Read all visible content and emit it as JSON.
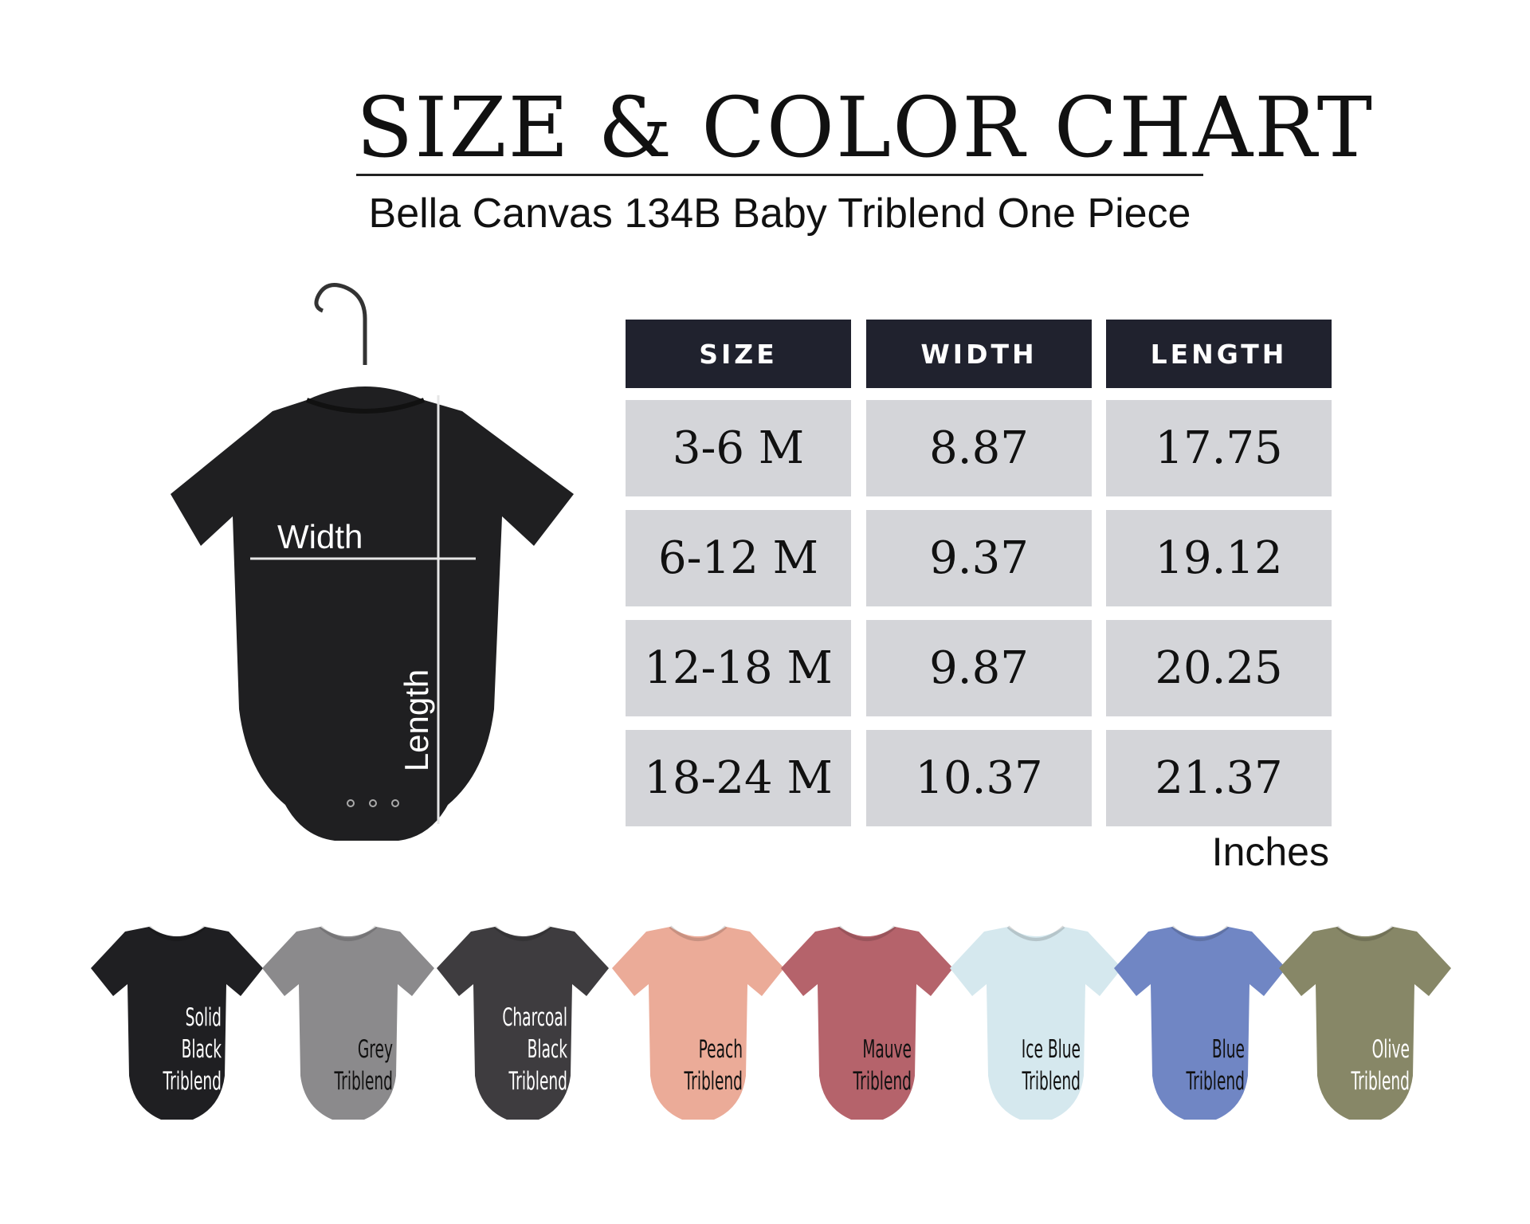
{
  "header": {
    "title": "SIZE & COLOR CHART",
    "subtitle": "Bella Canvas 134B Baby Triblend One Piece"
  },
  "diagram": {
    "width_label": "Width",
    "length_label": "Length",
    "garment_color": "#1f1f21"
  },
  "size_table": {
    "columns": [
      "SIZE",
      "WIDTH",
      "LENGTH"
    ],
    "rows": [
      [
        "3-6 M",
        "8.87",
        "17.75"
      ],
      [
        "6-12 M",
        "9.37",
        "19.12"
      ],
      [
        "12-18 M",
        "9.87",
        "20.25"
      ],
      [
        "18-24 M",
        "10.37",
        "21.37"
      ]
    ],
    "units": "Inches",
    "header_color": "#20222e",
    "cell_color": "#d4d5d9"
  },
  "colors": [
    {
      "lines": [
        "Solid",
        "Black",
        "Triblend"
      ],
      "hex": "#1f1f22",
      "text": "#ffffff"
    },
    {
      "lines": [
        "Grey",
        "Triblend"
      ],
      "hex": "#8b8a8c",
      "text": "#111111"
    },
    {
      "lines": [
        "Charcoal",
        "Black",
        "Triblend"
      ],
      "hex": "#3e3c3f",
      "text": "#ffffff"
    },
    {
      "lines": [
        "Peach",
        "Triblend"
      ],
      "hex": "#ebab98",
      "text": "#111111"
    },
    {
      "lines": [
        "Mauve",
        "Triblend"
      ],
      "hex": "#b5636b",
      "text": "#111111"
    },
    {
      "lines": [
        "Ice Blue",
        "Triblend"
      ],
      "hex": "#d5e8ee",
      "text": "#111111"
    },
    {
      "lines": [
        "Blue",
        "Triblend"
      ],
      "hex": "#7086c4",
      "text": "#111111"
    },
    {
      "lines": [
        "Olive",
        "Triblend"
      ],
      "hex": "#878767",
      "text": "#ffffff"
    }
  ]
}
